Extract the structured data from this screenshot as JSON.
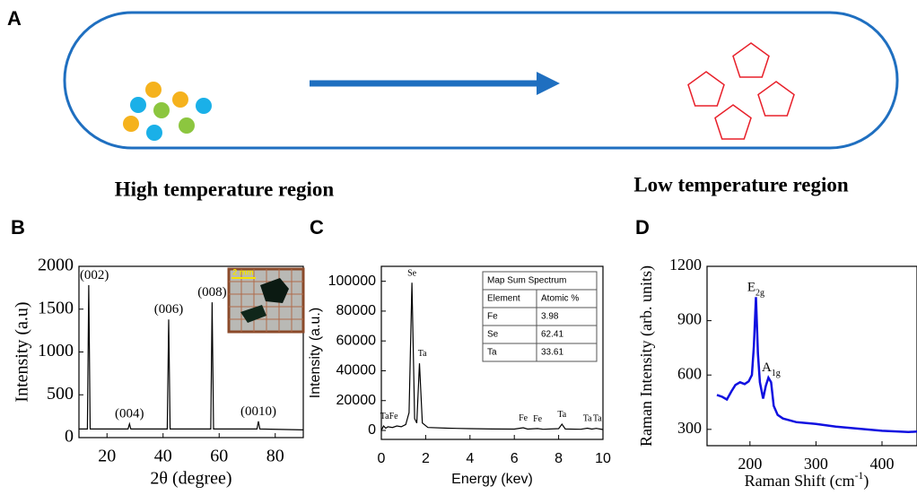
{
  "panel_a": {
    "label": "A",
    "left_label": "High temperature region",
    "right_label": "Low temperature region"
  },
  "chart_data": [
    {
      "type": "line",
      "label": "B",
      "xlabel": "2θ (degree)",
      "ylabel": "Intensity (a.u)",
      "xlim": [
        10,
        90
      ],
      "ylim": [
        0,
        2000
      ],
      "xticks": [
        20,
        40,
        60,
        80
      ],
      "yticks": [
        0,
        500,
        1000,
        1500,
        2000
      ],
      "series": [
        {
          "color": "#000000",
          "x": [
            10,
            13,
            13.5,
            14,
            27.5,
            28,
            28.5,
            41.5,
            42,
            42.5,
            57,
            57.5,
            58,
            73.5,
            74,
            74.5,
            90
          ],
          "values": [
            100,
            100,
            1780,
            100,
            100,
            160,
            100,
            100,
            1380,
            100,
            100,
            1580,
            100,
            100,
            190,
            100,
            90
          ]
        }
      ],
      "annotations": [
        {
          "text": "(002)",
          "x": 15.5,
          "y": 1780
        },
        {
          "text": "(004)",
          "x": 28,
          "y": 160
        },
        {
          "text": "(006)",
          "x": 42,
          "y": 1380
        },
        {
          "text": "(008)",
          "x": 57.5,
          "y": 1580
        },
        {
          "text": "(0010)",
          "x": 74,
          "y": 190
        }
      ],
      "inset_label": "2 mm"
    },
    {
      "type": "line",
      "label": "C",
      "xlabel": "Energy (kev)",
      "ylabel": "Intensity (a.u.)",
      "xlim": [
        0,
        10
      ],
      "ylim": [
        -6000,
        110000
      ],
      "xticks": [
        0,
        2,
        4,
        6,
        8,
        10
      ],
      "yticks": [
        0,
        20000,
        40000,
        60000,
        80000,
        100000
      ],
      "series": [
        {
          "color": "#000000",
          "x": [
            0,
            0.1,
            0.2,
            0.3,
            0.5,
            0.7,
            0.9,
            1.1,
            1.25,
            1.38,
            1.5,
            1.6,
            1.72,
            1.85,
            2.1,
            3,
            4,
            5,
            6,
            6.4,
            6.6,
            7.05,
            7.3,
            8,
            8.15,
            8.3,
            9,
            9.3,
            9.5,
            9.7,
            10
          ],
          "values": [
            0,
            3000,
            1500,
            2500,
            2000,
            3000,
            2500,
            4000,
            12000,
            99000,
            8000,
            5000,
            45000,
            5000,
            2000,
            1500,
            1200,
            1000,
            900,
            1800,
            900,
            1300,
            800,
            1200,
            4200,
            1000,
            800,
            1500,
            900,
            1400,
            600
          ]
        }
      ],
      "annotations": [
        {
          "text": "Ta",
          "x": 0.15,
          "y": 3000
        },
        {
          "text": "Fe",
          "x": 0.55,
          "y": 3000
        },
        {
          "text": "Se",
          "x": 1.38,
          "y": 99000
        },
        {
          "text": "Ta",
          "x": 1.85,
          "y": 45000
        },
        {
          "text": "Fe",
          "x": 6.4,
          "y": 1800
        },
        {
          "text": "Fe",
          "x": 7.05,
          "y": 1300
        },
        {
          "text": "Ta",
          "x": 8.15,
          "y": 4200
        },
        {
          "text": "Ta",
          "x": 9.3,
          "y": 1500
        },
        {
          "text": "Ta",
          "x": 9.75,
          "y": 1500
        }
      ],
      "table": {
        "title": "Map Sum Spectrum",
        "header": [
          "Element",
          "Atomic %"
        ],
        "rows": [
          [
            "Fe",
            3.98
          ],
          [
            "Se",
            62.41
          ],
          [
            "Ta",
            33.61
          ]
        ]
      }
    },
    {
      "type": "line",
      "label": "D",
      "xlabel": [
        "Raman Shift (cm",
        "-1",
        ")"
      ],
      "ylabel": "Raman Intensity (arb. units)",
      "xlim": [
        135,
        453
      ],
      "ylim": [
        210,
        1200
      ],
      "xticks": [
        200,
        300,
        400
      ],
      "yticks": [
        300,
        600,
        900,
        1200
      ],
      "series": [
        {
          "color": "#1010e0",
          "x": [
            150,
            158,
            165,
            172,
            178,
            185,
            192,
            198,
            203,
            206,
            209,
            212,
            215,
            220,
            224,
            228,
            232,
            236,
            242,
            250,
            270,
            300,
            330,
            360,
            400,
            440,
            453
          ],
          "values": [
            490,
            480,
            465,
            510,
            545,
            560,
            550,
            565,
            600,
            760,
            1030,
            720,
            560,
            470,
            540,
            585,
            560,
            430,
            380,
            360,
            340,
            330,
            315,
            305,
            292,
            285,
            288
          ]
        }
      ],
      "annotations": [
        {
          "text": "E",
          "sub": "2g",
          "x": 209,
          "y": 1030
        },
        {
          "text": "A",
          "sub": "1g",
          "x": 232,
          "y": 585
        }
      ]
    }
  ]
}
